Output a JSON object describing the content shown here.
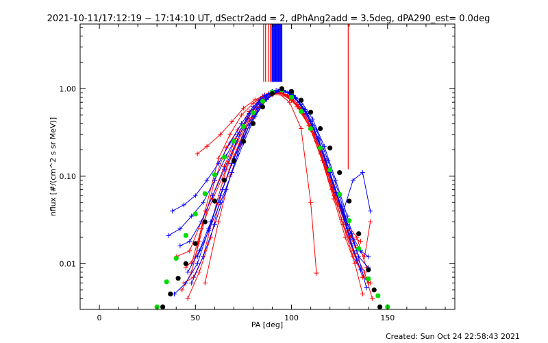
{
  "chart_data": {
    "type": "line",
    "title": "2021-10-11/17:12:19 − 17:14:10 UT, dSectr2add = 2, dPhAng2add = 3.5deg, dPA290_est=  0.0deg",
    "xlabel": "PA [deg]",
    "ylabel": "nflux [#/(cm^2 s sr MeV)]",
    "footer": "Created: Sun Oct 24 22:58:43 2021",
    "xlim": [
      -10,
      185
    ],
    "ylim": [
      0.003,
      5.5
    ],
    "yscale": "log",
    "x_ticks": [
      0,
      50,
      100,
      150
    ],
    "x_tick_labels": [
      "0",
      "50",
      "100",
      "150"
    ],
    "y_ticks": [
      0.01,
      0.1,
      1.0
    ],
    "y_tick_labels": [
      "0.01",
      "0.10",
      "1.00"
    ],
    "grid": false,
    "colors": {
      "red_series": "#ff0000",
      "blue_series": "#0000ff",
      "green_fit": "#00dd00",
      "black_fit": "#000000"
    },
    "series": [
      {
        "color": "#00dd00",
        "marker": "dot",
        "x": [
          30,
          35,
          40,
          45,
          50,
          55,
          60,
          65,
          70,
          75,
          80,
          85,
          90,
          95,
          100,
          105,
          110,
          115,
          120,
          125,
          130,
          135,
          140,
          145,
          150
        ],
        "y": [
          0.0032,
          0.0062,
          0.0115,
          0.021,
          0.037,
          0.063,
          0.104,
          0.165,
          0.25,
          0.37,
          0.53,
          0.72,
          0.92,
          0.97,
          0.8,
          0.55,
          0.35,
          0.21,
          0.118,
          0.062,
          0.031,
          0.0148,
          0.0067,
          0.0043,
          0.0032
        ]
      },
      {
        "color": "#000000",
        "marker": "dot",
        "x": [
          33,
          37,
          41,
          45,
          50,
          55,
          60,
          65,
          70,
          75,
          80,
          85,
          90,
          95,
          100,
          105,
          110,
          115,
          120,
          125,
          130,
          135,
          140,
          143,
          146
        ],
        "y": [
          0.0032,
          0.0045,
          0.0068,
          0.01,
          0.017,
          0.03,
          0.052,
          0.09,
          0.15,
          0.25,
          0.4,
          0.62,
          0.88,
          1.0,
          0.93,
          0.74,
          0.54,
          0.35,
          0.21,
          0.11,
          0.052,
          0.022,
          0.0085,
          0.005,
          0.0032
        ]
      },
      {
        "color": "#ff0000",
        "marker": "plus",
        "x": [
          43,
          48,
          52,
          60,
          66,
          72,
          78,
          83,
          86,
          90,
          95,
          100,
          105,
          110,
          117,
          122,
          127,
          132,
          137,
          141
        ],
        "y": [
          0.005,
          0.008,
          0.018,
          0.09,
          0.21,
          0.34,
          0.55,
          0.74,
          0.85,
          0.92,
          0.9,
          0.8,
          0.6,
          0.37,
          0.16,
          0.06,
          0.028,
          0.014,
          0.007,
          0.006
        ]
      },
      {
        "color": "#ff0000",
        "marker": "plus",
        "x": [
          45,
          50,
          55,
          62,
          68,
          74,
          80,
          85,
          90,
          95,
          100,
          106,
          112,
          118,
          124,
          129,
          133,
          138,
          141
        ],
        "y": [
          0.009,
          0.012,
          0.04,
          0.16,
          0.3,
          0.5,
          0.68,
          0.82,
          0.88,
          0.88,
          0.74,
          0.55,
          0.3,
          0.12,
          0.05,
          0.024,
          0.016,
          0.012,
          0.03
        ]
      },
      {
        "color": "#ff0000",
        "marker": "plus",
        "x": [
          40,
          47,
          53,
          59,
          65,
          71,
          77,
          84,
          90,
          96,
          103,
          110,
          116,
          122,
          128,
          134,
          139
        ],
        "y": [
          0.012,
          0.014,
          0.03,
          0.06,
          0.13,
          0.27,
          0.46,
          0.72,
          0.86,
          0.84,
          0.66,
          0.4,
          0.2,
          0.08,
          0.03,
          0.02,
          0.009
        ]
      },
      {
        "color": "#ff0000",
        "marker": "plus",
        "x": [
          51,
          56,
          63,
          69,
          75,
          81,
          88,
          94,
          100,
          107,
          113,
          119,
          125,
          131,
          136
        ],
        "y": [
          0.18,
          0.22,
          0.3,
          0.42,
          0.6,
          0.75,
          0.88,
          0.9,
          0.76,
          0.5,
          0.26,
          0.11,
          0.045,
          0.02,
          0.018
        ]
      },
      {
        "color": "#ff0000",
        "marker": "plus",
        "x": [
          44,
          49,
          54,
          61,
          67,
          73,
          80,
          87,
          93,
          99,
          105,
          110,
          113
        ],
        "y": [
          0.006,
          0.007,
          0.012,
          0.05,
          0.14,
          0.3,
          0.58,
          0.8,
          0.9,
          0.7,
          0.35,
          0.05,
          0.0078
        ]
      },
      {
        "color": "#ff0000",
        "marker": "plus",
        "x": [
          46,
          52,
          58,
          64,
          70,
          76,
          82,
          88,
          94,
          100,
          106,
          113,
          120,
          126,
          132,
          140
        ],
        "y": [
          0.004,
          0.008,
          0.02,
          0.07,
          0.17,
          0.35,
          0.6,
          0.82,
          0.92,
          0.78,
          0.52,
          0.25,
          0.09,
          0.032,
          0.012,
          0.006
        ]
      },
      {
        "color": "#ff0000",
        "marker": "plus",
        "x": [
          48,
          53,
          59,
          66,
          72,
          78,
          85,
          91,
          97,
          103,
          109,
          115,
          121,
          127,
          133,
          138,
          142
        ],
        "y": [
          0.01,
          0.025,
          0.055,
          0.12,
          0.25,
          0.45,
          0.7,
          0.9,
          0.86,
          0.62,
          0.38,
          0.18,
          0.07,
          0.028,
          0.013,
          0.008,
          0.004
        ]
      },
      {
        "color": "#ff0000",
        "marker": "plus",
        "x": [
          55,
          62,
          68,
          74,
          80,
          86,
          92,
          98,
          104,
          110,
          116,
          122,
          128,
          133,
          137
        ],
        "y": [
          0.006,
          0.03,
          0.1,
          0.24,
          0.48,
          0.74,
          0.92,
          0.84,
          0.6,
          0.34,
          0.15,
          0.055,
          0.02,
          0.01,
          0.0045
        ]
      },
      {
        "color": "#0000ff",
        "marker": "plus",
        "x": [
          38,
          44,
          50,
          56,
          62,
          68,
          74,
          80,
          86,
          92,
          98,
          104,
          110,
          116,
          122,
          127,
          132,
          137,
          141
        ],
        "y": [
          0.04,
          0.047,
          0.06,
          0.09,
          0.14,
          0.24,
          0.4,
          0.62,
          0.84,
          0.96,
          0.9,
          0.7,
          0.42,
          0.19,
          0.075,
          0.04,
          0.09,
          0.11,
          0.04
        ]
      },
      {
        "color": "#0000ff",
        "marker": "plus",
        "x": [
          36,
          42,
          48,
          54,
          60,
          66,
          72,
          78,
          84,
          90,
          96,
          102,
          108,
          114,
          120,
          126,
          131,
          136,
          140
        ],
        "y": [
          0.021,
          0.025,
          0.035,
          0.05,
          0.09,
          0.17,
          0.3,
          0.52,
          0.76,
          0.93,
          0.95,
          0.78,
          0.5,
          0.26,
          0.11,
          0.045,
          0.022,
          0.014,
          0.012
        ]
      },
      {
        "color": "#0000ff",
        "marker": "plus",
        "x": [
          39,
          45,
          51,
          57,
          63,
          69,
          75,
          81,
          87,
          93,
          99,
          105,
          111,
          117,
          123,
          129,
          134,
          139
        ],
        "y": [
          0.0045,
          0.006,
          0.01,
          0.025,
          0.06,
          0.14,
          0.28,
          0.5,
          0.75,
          0.93,
          0.92,
          0.72,
          0.45,
          0.22,
          0.09,
          0.035,
          0.014,
          0.0053
        ]
      },
      {
        "color": "#0000ff",
        "marker": "plus",
        "x": [
          42,
          47,
          53,
          59,
          65,
          71,
          77,
          83,
          89,
          95,
          101,
          107,
          113,
          119,
          125,
          130,
          135,
          140
        ],
        "y": [
          0.016,
          0.018,
          0.03,
          0.06,
          0.12,
          0.24,
          0.45,
          0.7,
          0.9,
          0.97,
          0.84,
          0.58,
          0.34,
          0.15,
          0.06,
          0.025,
          0.012,
          0.009
        ]
      },
      {
        "color": "#0000ff",
        "marker": "plus",
        "x": [
          46,
          52,
          58,
          64,
          70,
          76,
          82,
          88,
          94,
          100,
          106,
          112,
          118,
          124,
          129,
          134
        ],
        "y": [
          0.008,
          0.014,
          0.03,
          0.07,
          0.16,
          0.34,
          0.6,
          0.86,
          0.98,
          0.86,
          0.6,
          0.34,
          0.15,
          0.06,
          0.025,
          0.011
        ]
      },
      {
        "color": "#0000ff",
        "marker": "plus",
        "x": [
          48,
          54,
          60,
          66,
          72,
          78,
          84,
          90,
          96,
          102,
          108,
          114,
          120,
          126,
          131,
          136
        ],
        "y": [
          0.006,
          0.012,
          0.028,
          0.07,
          0.18,
          0.38,
          0.66,
          0.9,
          0.96,
          0.8,
          0.52,
          0.27,
          0.11,
          0.04,
          0.017,
          0.0085
        ]
      },
      {
        "color": "#0000ff",
        "marker": "plus",
        "x": [
          51,
          57,
          63,
          69,
          75,
          81,
          87,
          93,
          99,
          105,
          111,
          117,
          123,
          129
        ],
        "y": [
          0.012,
          0.024,
          0.05,
          0.11,
          0.24,
          0.48,
          0.76,
          0.95,
          0.9,
          0.66,
          0.38,
          0.17,
          0.065,
          0.028
        ]
      }
    ],
    "vertical_lines": [
      {
        "color": "#ff0000",
        "x": 85.5,
        "y_from": 1.2,
        "y_to": 5.5
      },
      {
        "color": "#ff0000",
        "x": 86.5,
        "y_from": 1.2,
        "y_to": 5.5
      },
      {
        "color": "#ff0000",
        "x": 88,
        "y_from": 1.2,
        "y_to": 5.5
      },
      {
        "color": "#ff0000",
        "x": 89,
        "y_from": 1.2,
        "y_to": 5.5
      },
      {
        "color": "#0000ff",
        "x": 89.8,
        "y_from": 1.2,
        "y_to": 5.5
      },
      {
        "color": "#0000ff",
        "x": 90.2,
        "y_from": 1.2,
        "y_to": 5.5
      },
      {
        "color": "#0000ff",
        "x": 90.6,
        "y_from": 1.2,
        "y_to": 5.5
      },
      {
        "color": "#0000ff",
        "x": 91,
        "y_from": 1.2,
        "y_to": 5.5
      },
      {
        "color": "#0000ff",
        "x": 91.4,
        "y_from": 1.2,
        "y_to": 5.5
      },
      {
        "color": "#0000ff",
        "x": 91.8,
        "y_from": 1.2,
        "y_to": 5.5
      },
      {
        "color": "#0000ff",
        "x": 92.2,
        "y_from": 1.2,
        "y_to": 5.5
      },
      {
        "color": "#0000ff",
        "x": 92.6,
        "y_from": 1.2,
        "y_to": 5.5
      },
      {
        "color": "#0000ff",
        "x": 93,
        "y_from": 1.2,
        "y_to": 5.5
      },
      {
        "color": "#0000ff",
        "x": 93.4,
        "y_from": 1.2,
        "y_to": 5.5
      },
      {
        "color": "#0000ff",
        "x": 93.8,
        "y_from": 1.2,
        "y_to": 5.5
      },
      {
        "color": "#0000ff",
        "x": 94.2,
        "y_from": 1.2,
        "y_to": 5.5
      },
      {
        "color": "#0000ff",
        "x": 94.6,
        "y_from": 1.2,
        "y_to": 5.5
      },
      {
        "color": "#0000ff",
        "x": 95,
        "y_from": 1.2,
        "y_to": 5.5
      },
      {
        "color": "#ff0000",
        "x": 129.5,
        "y_from": 0.12,
        "y_to": 5.5
      }
    ]
  }
}
